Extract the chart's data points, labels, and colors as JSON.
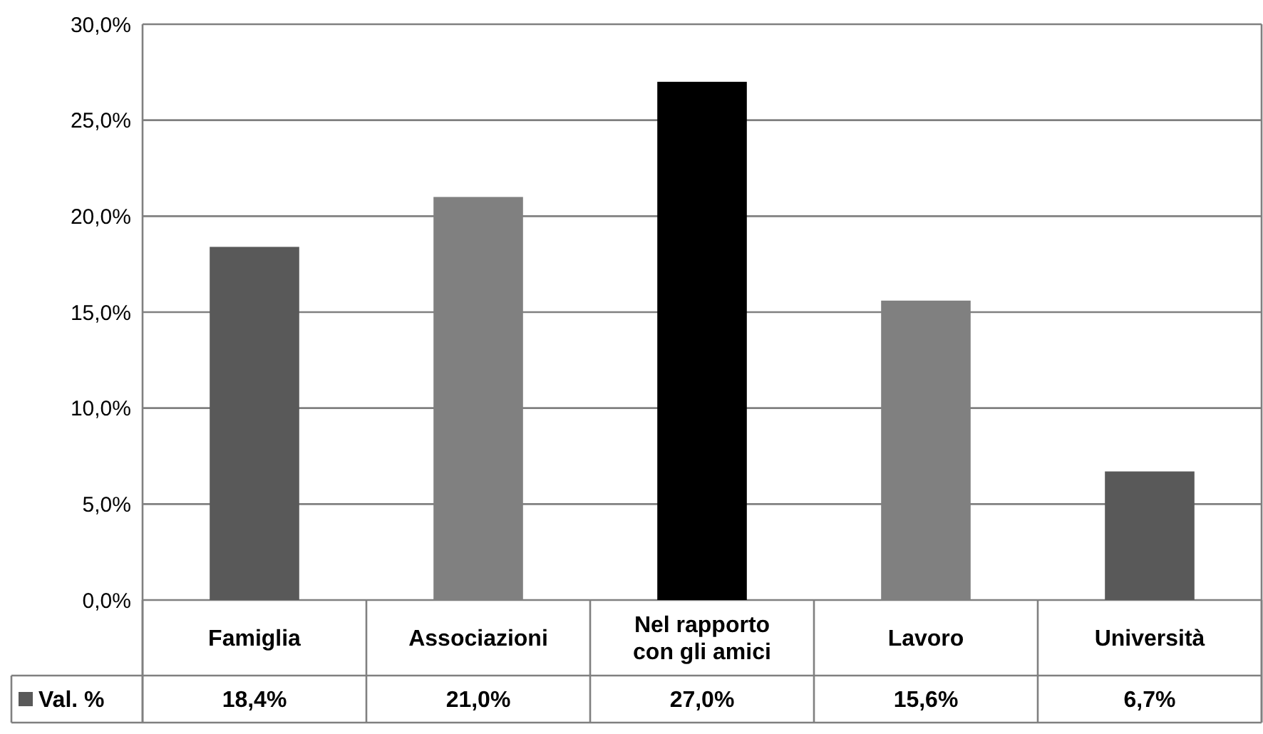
{
  "chart_data": {
    "type": "bar",
    "categories": [
      "Famiglia",
      "Associazioni",
      "Nel rapporto con gli amici",
      "Lavoro",
      "Università"
    ],
    "series": [
      {
        "name": "Val. %",
        "values": [
          18.4,
          21.0,
          27.0,
          15.6,
          6.7
        ],
        "colors": [
          "#595959",
          "#808080",
          "#000000",
          "#808080",
          "#595959"
        ],
        "value_labels": [
          "18,4%",
          "21,0%",
          "27,0%",
          "15,6%",
          "6,7%"
        ]
      }
    ],
    "ylim": [
      0,
      30
    ],
    "yticks": [
      {
        "value": 0,
        "label": "0,0%"
      },
      {
        "value": 5,
        "label": "5,0%"
      },
      {
        "value": 10,
        "label": "10,0%"
      },
      {
        "value": 15,
        "label": "15,0%"
      },
      {
        "value": 20,
        "label": "20,0%"
      },
      {
        "value": 25,
        "label": "25,0%"
      },
      {
        "value": 30,
        "label": "30,0%"
      }
    ],
    "grid": "y",
    "legend": "bottom"
  }
}
